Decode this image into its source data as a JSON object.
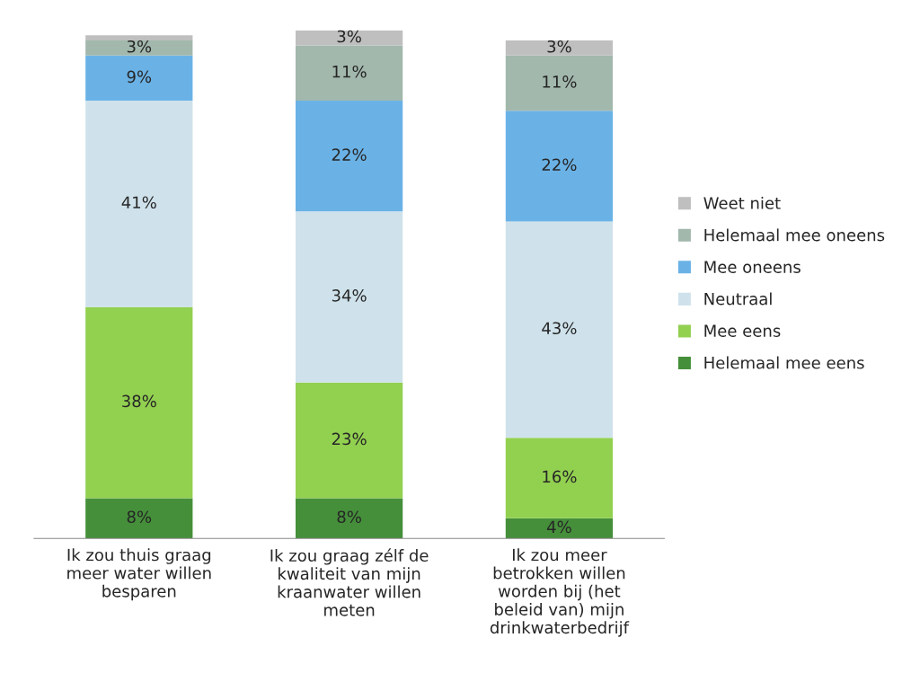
{
  "chart_data": {
    "type": "bar",
    "stacked": true,
    "legend": "right",
    "grid": false,
    "categories": [
      "Ik zou thuis graag meer water willen besparen",
      "Ik zou graag zélf de kwaliteit van mijn kraanwater willen meten",
      "Ik zou meer betrokken willen worden bij (het beleid van) mijn drinkwaterbedrijf"
    ],
    "series": [
      {
        "name": "Helemaal mee eens",
        "color": "#458f3a",
        "values": [
          8,
          8,
          4
        ],
        "value_labels": [
          "8%",
          "8%",
          "4%"
        ]
      },
      {
        "name": "Mee eens",
        "color": "#92d050",
        "values": [
          38,
          23,
          16
        ],
        "value_labels": [
          "38%",
          "23%",
          "16%"
        ]
      },
      {
        "name": "Neutraal",
        "color": "#cfe2eb",
        "values": [
          41,
          34,
          43
        ],
        "value_labels": [
          "41%",
          "34%",
          "43%"
        ]
      },
      {
        "name": "Mee oneens",
        "color": "#6ab2e6",
        "values": [
          9,
          22,
          22
        ],
        "value_labels": [
          "9%",
          "22%",
          "22%"
        ]
      },
      {
        "name": "Helemaal mee oneens",
        "color": "#a2b8ad",
        "values": [
          3,
          11,
          11
        ],
        "value_labels": [
          "3%",
          "11%",
          "11%"
        ]
      },
      {
        "name": "Weet niet",
        "color": "#bfbfbf",
        "values": [
          1,
          3,
          3
        ],
        "value_labels": [
          null,
          "3%",
          "3%"
        ]
      }
    ]
  }
}
